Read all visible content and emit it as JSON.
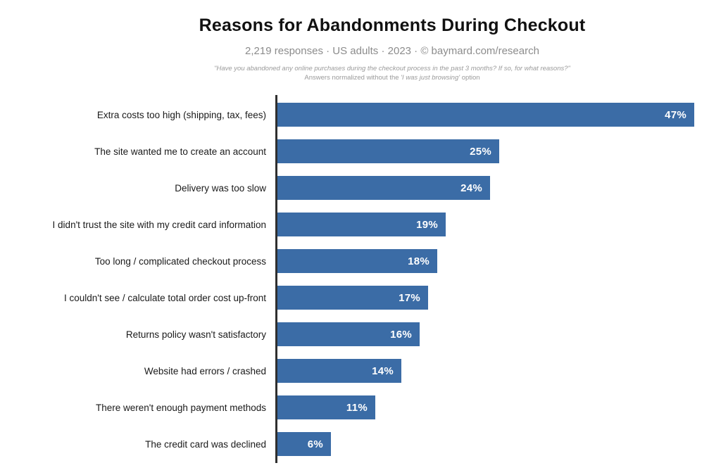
{
  "header": {
    "title": "Reasons for Abandonments During Checkout",
    "subtitle": "2,219 responses · US adults · 2023 · © baymard.com/research",
    "footnote_line1": "\"Have you abandoned any online purchases during the checkout process in the past 3 months? If so, for what reasons?\"",
    "footnote_line2": {
      "prefix": "Answers normalized without the ",
      "quote": "'I was just browsing'",
      "suffix": " option"
    }
  },
  "chart_data": {
    "type": "bar",
    "orientation": "horizontal",
    "title": "Reasons for Abandonments During Checkout",
    "subtitle": "2,219 responses · US adults · 2023 · © baymard.com/research",
    "categories": [
      "Extra costs too high (shipping, tax, fees)",
      "The site wanted me to create an account",
      "Delivery was too slow",
      "I didn't trust the site with my credit card information",
      "Too long / complicated checkout process",
      "I couldn't see / calculate total order cost up-front",
      "Returns policy wasn't satisfactory",
      "Website had errors / crashed",
      "There weren't enough payment methods",
      "The credit card was declined"
    ],
    "values": [
      47,
      25,
      24,
      19,
      18,
      17,
      16,
      14,
      11,
      6
    ],
    "value_suffix": "%",
    "xlabel": "",
    "ylabel": "",
    "xlim": [
      0,
      48.5
    ],
    "grid": false,
    "legend": false,
    "bar_color": "#3b6ca6",
    "value_label_color": "#ffffff",
    "axis_color": "#2f2f2f"
  }
}
